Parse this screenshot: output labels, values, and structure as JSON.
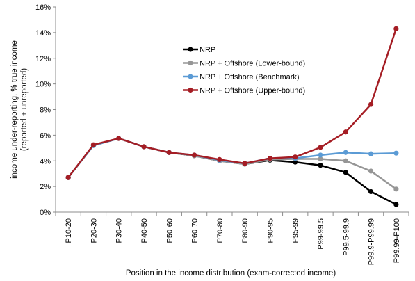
{
  "chart_data": {
    "type": "line",
    "title": "",
    "xlabel": "Position in the income distribution (exam-corrected income)",
    "ylabel_lines": [
      "income under-reporting, % true income",
      "(reported + unreported)"
    ],
    "ylim": [
      0,
      16
    ],
    "yticks": [
      0,
      2,
      4,
      6,
      8,
      10,
      12,
      14,
      16
    ],
    "ytick_suffix": "%",
    "grid": false,
    "legend_position": "center",
    "categories": [
      "P10-20",
      "P20-30",
      "P30-40",
      "P40-50",
      "P50-60",
      "P60-70",
      "P70-80",
      "P80-90",
      "P90-95",
      "P95-99",
      "P99-99.5",
      "P99.5-99.9",
      "P99.9-P99.99",
      "P99.99-P100"
    ],
    "series": [
      {
        "name": "NRP",
        "color": "#000000",
        "values": [
          2.7,
          5.2,
          5.75,
          5.1,
          4.65,
          4.4,
          4.0,
          3.75,
          4.05,
          3.9,
          3.65,
          3.1,
          1.6,
          0.6
        ]
      },
      {
        "name": "NRP + Offshore (Lower-bound)",
        "color": "#969696",
        "values": [
          2.7,
          5.2,
          5.75,
          5.1,
          4.65,
          4.4,
          4.0,
          3.75,
          4.1,
          4.15,
          4.15,
          4.0,
          3.2,
          1.8
        ]
      },
      {
        "name": "NRP + Offshore (Benchmark)",
        "color": "#5b9bd5",
        "values": [
          2.7,
          5.2,
          5.75,
          5.1,
          4.65,
          4.45,
          4.05,
          3.8,
          4.2,
          4.2,
          4.45,
          4.65,
          4.55,
          4.6
        ]
      },
      {
        "name": "NRP + Offshore (Upper-bound)",
        "color": "#a51d24",
        "values": [
          2.7,
          5.25,
          5.75,
          5.1,
          4.65,
          4.45,
          4.1,
          3.8,
          4.2,
          4.3,
          5.05,
          6.25,
          8.4,
          14.3
        ]
      }
    ]
  }
}
